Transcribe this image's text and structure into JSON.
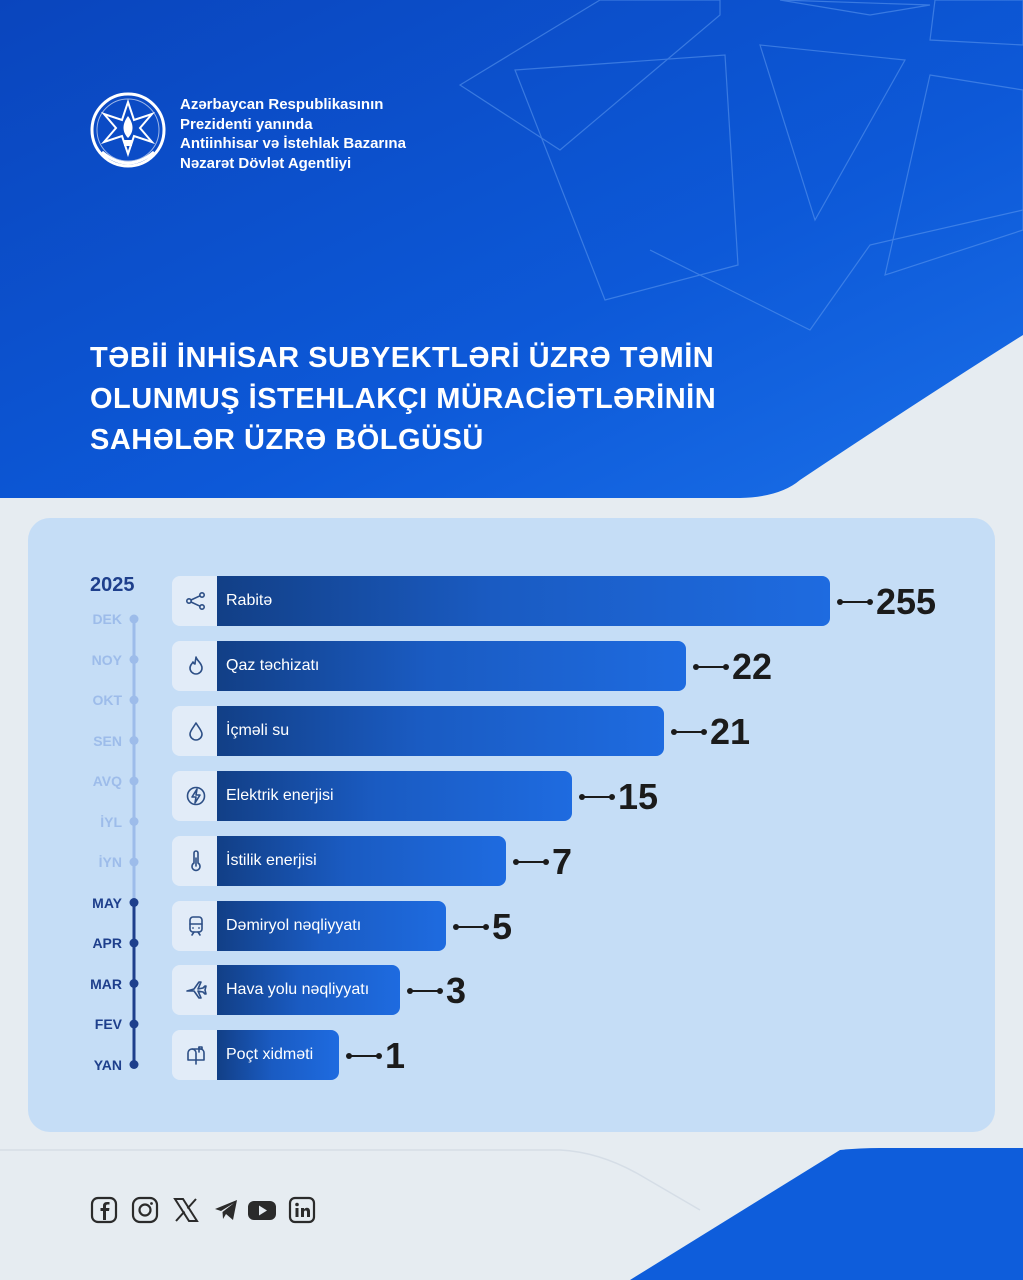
{
  "header": {
    "agency_lines": [
      "Azərbaycan Respublikasının",
      "Prezidenti yanında",
      "Antiinhisar və İstehlak Bazarına",
      "Nəzarət Dövlət Agentliyi"
    ],
    "title_lines": [
      "TƏBİİ İNHİSAR SUBYEKTLƏRİ ÜZRƏ TƏMİN",
      "OLUNMUŞ İSTEHLAKÇI MÜRACİƏTLƏRİNİN",
      "SAHƏLƏR ÜZRƏ BÖLGÜSÜ"
    ]
  },
  "timeline": {
    "year": "2025",
    "months": [
      {
        "label": "DEK",
        "active": false
      },
      {
        "label": "NOY",
        "active": false
      },
      {
        "label": "OKT",
        "active": false
      },
      {
        "label": "SEN",
        "active": false
      },
      {
        "label": "AVQ",
        "active": false
      },
      {
        "label": "İYL",
        "active": false
      },
      {
        "label": "İYN",
        "active": false
      },
      {
        "label": "MAY",
        "active": true
      },
      {
        "label": "APR",
        "active": true
      },
      {
        "label": "MAR",
        "active": true
      },
      {
        "label": "FEV",
        "active": true
      },
      {
        "label": "YAN",
        "active": true
      }
    ]
  },
  "chart_data": {
    "type": "bar",
    "orientation": "horizontal",
    "categories": [
      "Rabitə",
      "Qaz təchizatı",
      "İçməli su",
      "Elektrik enerjisi",
      "İstilik enerjisi",
      "Dəmiryol nəqliyyatı",
      "Hava yolu nəqliyyatı",
      "Poçt xidməti"
    ],
    "values": [
      255,
      22,
      21,
      15,
      7,
      5,
      3,
      1
    ],
    "category_icons": [
      "network-icon",
      "flame-icon",
      "water-drop-icon",
      "lightning-icon",
      "thermometer-icon",
      "train-icon",
      "airplane-icon",
      "mailbox-icon"
    ],
    "bar_color": "#1a5bc2",
    "scale": "non-linear (visual ranking)"
  },
  "social": {
    "icons": [
      "facebook-icon",
      "instagram-icon",
      "x-icon",
      "telegram-icon",
      "youtube-icon",
      "linkedin-icon"
    ]
  },
  "colors": {
    "header_blue": "#0d57d5",
    "panel": "#c5ddf6",
    "timeline_active": "#1e3f8c",
    "timeline_inactive": "#9dbcea"
  }
}
